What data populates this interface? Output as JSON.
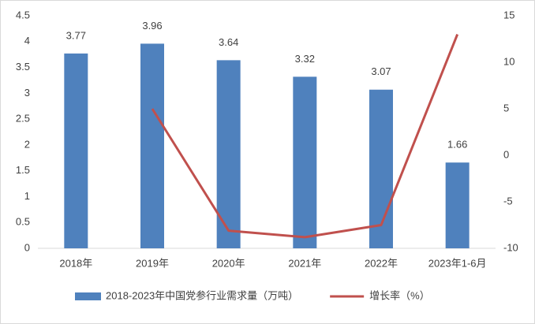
{
  "chart_data": {
    "type": "bar",
    "categories": [
      "2018年",
      "2019年",
      "2020年",
      "2021年",
      "2022年",
      "2023年1-6月"
    ],
    "series": [
      {
        "name": "2018-2023年中国党参行业需求量（万吨）",
        "type": "bar",
        "color": "#4f81bd",
        "values": [
          3.77,
          3.96,
          3.64,
          3.32,
          3.07,
          1.66
        ]
      },
      {
        "name": "增长率（%）",
        "type": "line",
        "axis": "y2",
        "color": "#c0504d",
        "values": [
          null,
          5.0,
          -8.1,
          -8.8,
          -7.5,
          13.0
        ]
      }
    ],
    "ylim": [
      0,
      4.5
    ],
    "yticks": [
      0,
      0.5,
      1,
      1.5,
      2,
      2.5,
      3,
      3.5,
      4,
      4.5
    ],
    "y2lim": [
      -10,
      15
    ],
    "y2ticks": [
      -10,
      -5,
      0,
      5,
      10,
      15
    ],
    "grid": false,
    "legend": "bottom"
  }
}
